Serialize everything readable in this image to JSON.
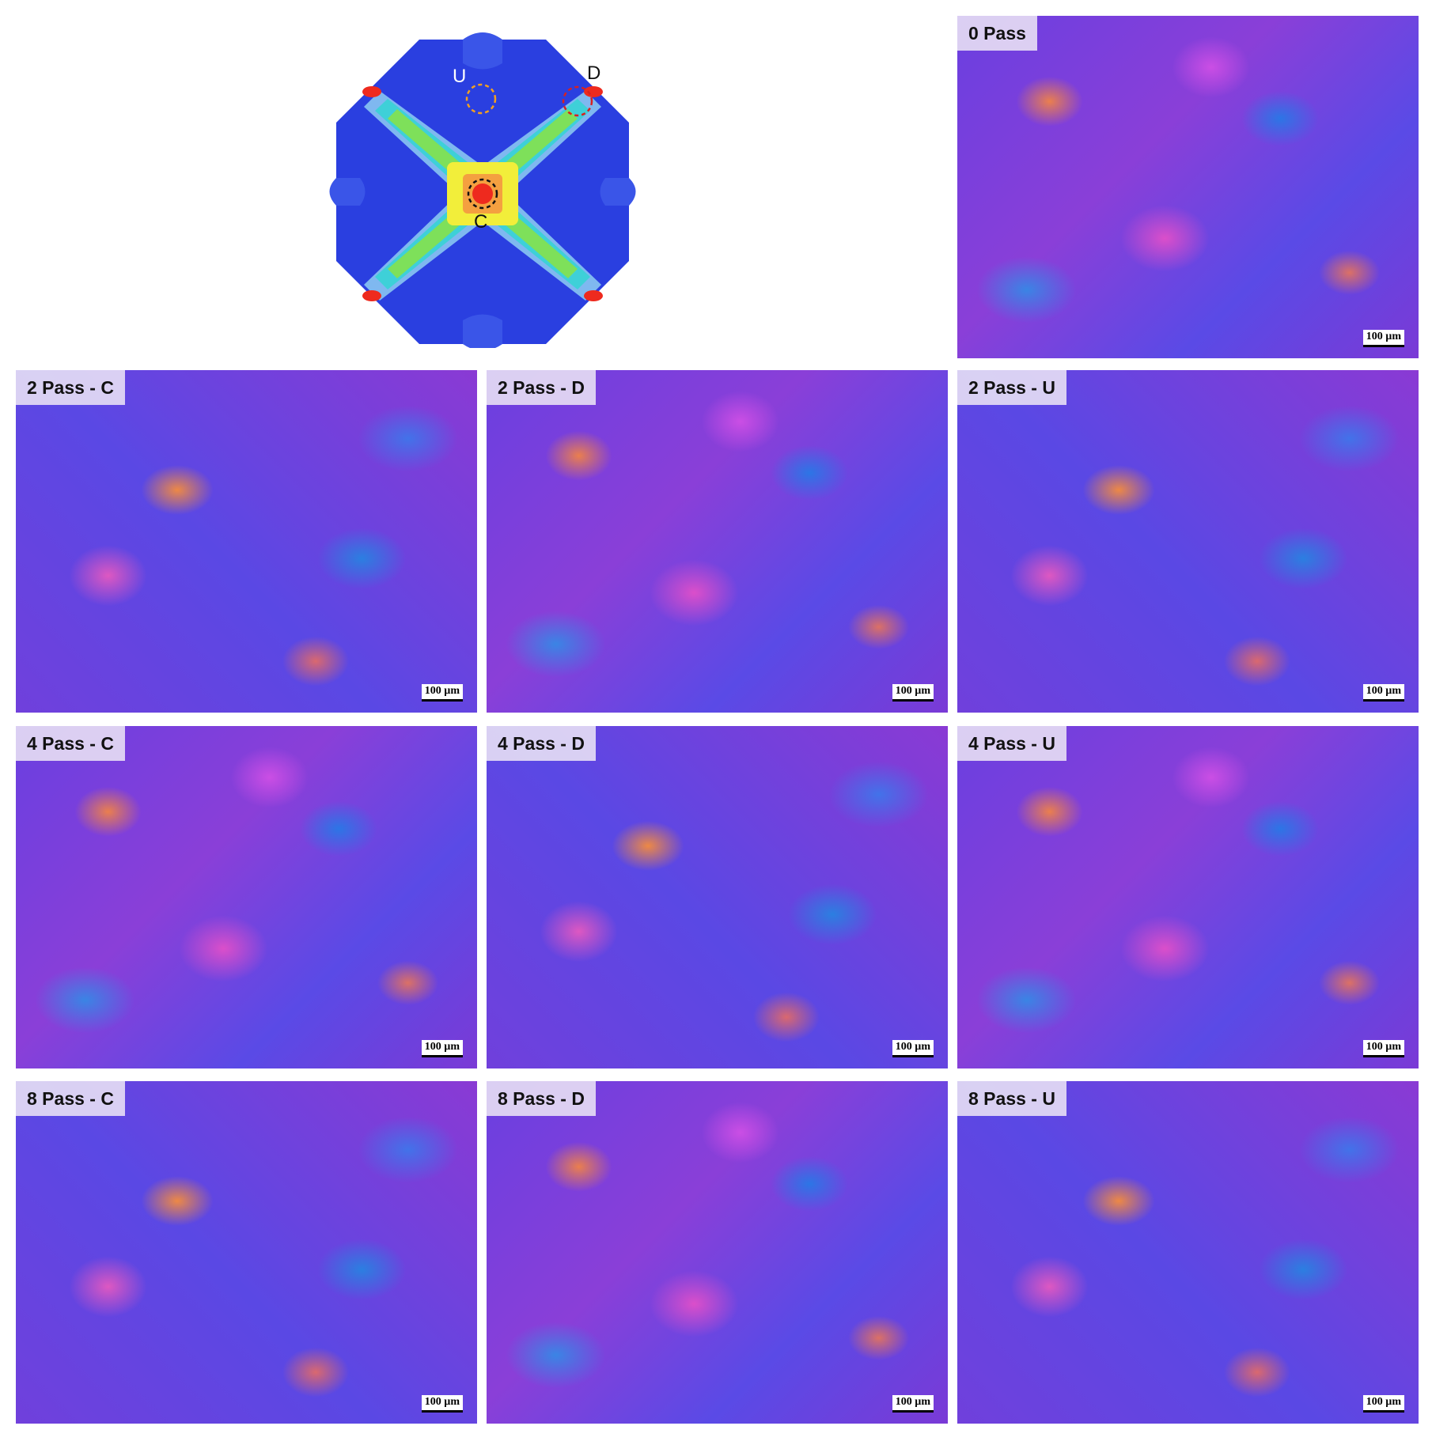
{
  "schematic": {
    "labels": {
      "u": "U",
      "d": "D",
      "c": "C"
    }
  },
  "panels": [
    {
      "label": "0 Pass",
      "scale": "100 µm"
    },
    {
      "label": "2 Pass - C",
      "scale": "100 µm"
    },
    {
      "label": "2 Pass - D",
      "scale": "100 µm"
    },
    {
      "label": "2 Pass - U",
      "scale": "100 µm"
    },
    {
      "label": "4 Pass - C",
      "scale": "100 µm"
    },
    {
      "label": "4 Pass - D",
      "scale": "100 µm"
    },
    {
      "label": "4 Pass - U",
      "scale": "100 µm"
    },
    {
      "label": "8 Pass - C",
      "scale": "100 µm"
    },
    {
      "label": "8 Pass - D",
      "scale": "100 µm"
    },
    {
      "label": "8 Pass - U",
      "scale": "100 µm"
    }
  ],
  "colors": {
    "die_body": "#2a3fe0",
    "contour_green": "#7ee05a",
    "contour_yellow": "#f2ee3a",
    "contour_orange": "#f4a040",
    "contour_red": "#ee2a1e",
    "circle_u": "#f2a020",
    "circle_d": "#d82020",
    "circle_c": "#111111"
  }
}
